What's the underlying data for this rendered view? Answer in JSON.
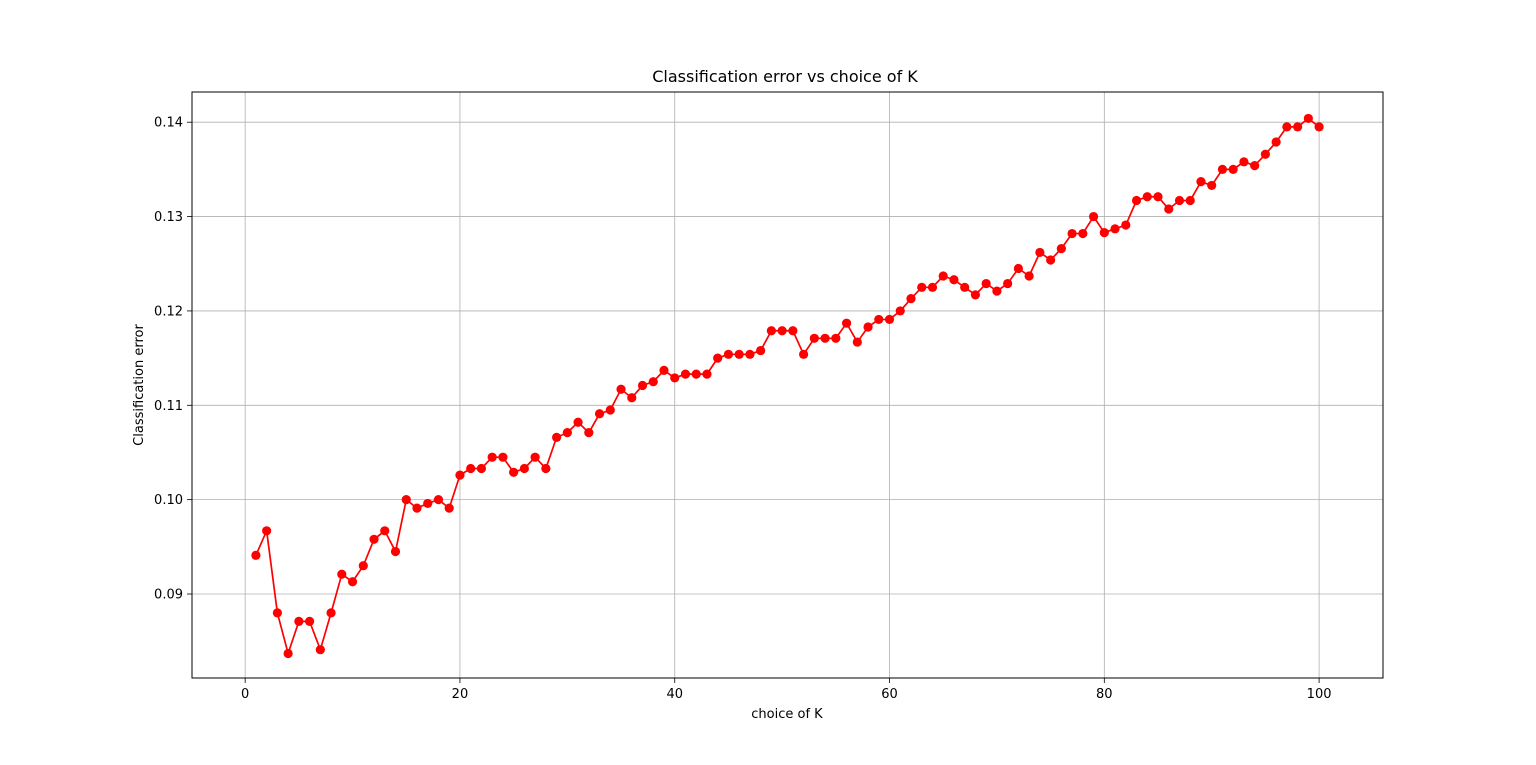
{
  "chart_data": {
    "type": "line",
    "title": "Classification error vs choice of K",
    "xlabel": "choice of K",
    "ylabel": "Classification error",
    "xlim": [
      -4.95,
      105.95
    ],
    "ylim": [
      0.0811,
      0.1432
    ],
    "xticks": [
      0,
      20,
      40,
      60,
      80,
      100
    ],
    "xtick_labels": [
      "0",
      "20",
      "40",
      "60",
      "80",
      "100"
    ],
    "yticks": [
      0.09,
      0.1,
      0.11,
      0.12,
      0.13,
      0.14
    ],
    "ytick_labels": [
      "0.09",
      "0.10",
      "0.11",
      "0.12",
      "0.13",
      "0.14"
    ],
    "grid": true,
    "line_color": "#ff0000",
    "marker": "circle",
    "series": [
      {
        "x": [
          1,
          2,
          3,
          4,
          5,
          6,
          7,
          8,
          9,
          10,
          11,
          12,
          13,
          14,
          15,
          16,
          17,
          18,
          19,
          20,
          21,
          22,
          23,
          24,
          25,
          26,
          27,
          28,
          29,
          30,
          31,
          32,
          33,
          34,
          35,
          36,
          37,
          38,
          39,
          40,
          41,
          42,
          43,
          44,
          45,
          46,
          47,
          48,
          49,
          50,
          51,
          52,
          53,
          54,
          55,
          56,
          57,
          58,
          59,
          60,
          61,
          62,
          63,
          64,
          65,
          66,
          67,
          68,
          69,
          70,
          71,
          72,
          73,
          74,
          75,
          76,
          77,
          78,
          79,
          80,
          81,
          82,
          83,
          84,
          85,
          86,
          87,
          88,
          89,
          90,
          91,
          92,
          93,
          94,
          95,
          96,
          97,
          98,
          99,
          100
        ],
        "values": [
          0.0941,
          0.0967,
          0.088,
          0.0837,
          0.0871,
          0.0871,
          0.0841,
          0.088,
          0.0921,
          0.0913,
          0.093,
          0.0958,
          0.0967,
          0.0945,
          0.1,
          0.0991,
          0.0996,
          0.1,
          0.0991,
          0.1026,
          0.1033,
          0.1033,
          0.1045,
          0.1045,
          0.1029,
          0.1033,
          0.1045,
          0.1033,
          0.1066,
          0.1071,
          0.1082,
          0.1071,
          0.1091,
          0.1095,
          0.1117,
          0.1108,
          0.1121,
          0.1125,
          0.1137,
          0.1129,
          0.1133,
          0.1133,
          0.1133,
          0.115,
          0.1154,
          0.1154,
          0.1154,
          0.1158,
          0.1179,
          0.1179,
          0.1179,
          0.1154,
          0.1171,
          0.1171,
          0.1171,
          0.1187,
          0.1167,
          0.1183,
          0.1191,
          0.1191,
          0.12,
          0.1213,
          0.1225,
          0.1225,
          0.1237,
          0.1233,
          0.1225,
          0.1217,
          0.1229,
          0.1221,
          0.1229,
          0.1245,
          0.1237,
          0.1262,
          0.1254,
          0.1266,
          0.1282,
          0.1282,
          0.13,
          0.1283,
          0.1287,
          0.1291,
          0.1317,
          0.1321,
          0.1321,
          0.1308,
          0.1317,
          0.1317,
          0.1337,
          0.1333,
          0.135,
          0.135,
          0.1358,
          0.1354,
          0.1366,
          0.1379,
          0.1395,
          0.1395,
          0.1404,
          0.1395
        ]
      }
    ]
  }
}
